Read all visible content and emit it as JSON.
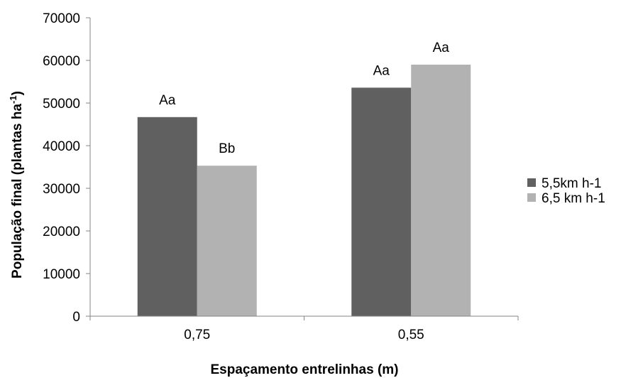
{
  "chart_data": {
    "type": "bar",
    "categories": [
      "0,75",
      "0,55"
    ],
    "series": [
      {
        "name": "5,5km h-1",
        "values": [
          46700,
          53600
        ],
        "labels": [
          "Aa",
          "Aa"
        ],
        "color": "#606060"
      },
      {
        "name": "6,5 km h-1",
        "values": [
          35300,
          59000
        ],
        "labels": [
          "Bb",
          "Aa"
        ],
        "color": "#b2b2b2"
      }
    ],
    "xlabel": "Espaçamento entrelinhas (m)",
    "ylabel": "População final (plantas ha",
    "ylabel_sup": "-1",
    "ylabel_end": ")",
    "ylim": [
      0,
      70000
    ],
    "yticks": [
      "0",
      "10000",
      "20000",
      "30000",
      "40000",
      "50000",
      "60000",
      "70000"
    ],
    "grid": false,
    "legend_position": "right"
  }
}
